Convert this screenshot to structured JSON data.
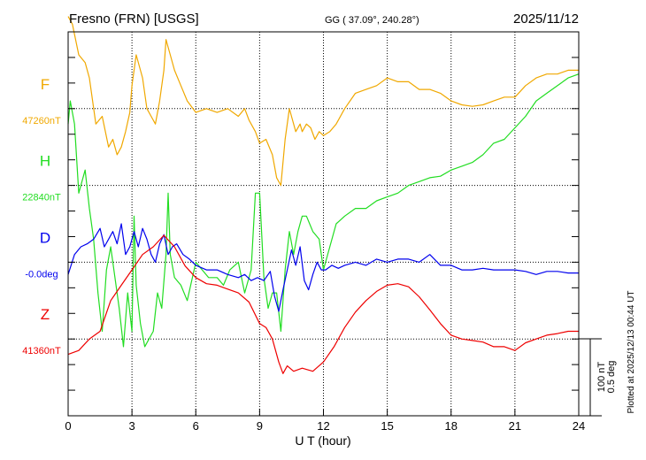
{
  "header": {
    "station": "Fresno (FRN)  [USGS]",
    "coords": "GG ( 37.09°, 240.28°)",
    "date": "2025/11/12"
  },
  "footer": {
    "plotted": "Plotted at 2025/12/13 00:44 UT",
    "scale_nt": "100 nT",
    "scale_deg": "0.5 deg"
  },
  "chart_data": {
    "type": "line",
    "xlabel": "U T (hour)",
    "xlim": [
      0,
      24
    ],
    "xticks": [
      0,
      3,
      6,
      9,
      12,
      15,
      18,
      21,
      24
    ],
    "grid": true,
    "scale_bar": "100 nT / 0.5 deg per 3 grid rows",
    "series": [
      {
        "name": "F",
        "baseline_label": "47260nT",
        "color": "#f0a800",
        "baseline": 47260,
        "x": [
          0,
          0.2,
          0.5,
          0.8,
          1.0,
          1.3,
          1.6,
          1.9,
          2.1,
          2.3,
          2.5,
          2.7,
          2.9,
          3.0,
          3.2,
          3.4,
          3.5,
          3.7,
          3.9,
          4.1,
          4.3,
          4.5,
          4.6,
          4.7,
          4.8,
          5.0,
          5.3,
          5.6,
          6.0,
          6.5,
          7.0,
          7.5,
          8.0,
          8.3,
          8.5,
          8.8,
          9.0,
          9.3,
          9.6,
          9.8,
          10.0,
          10.2,
          10.4,
          10.5,
          10.7,
          10.9,
          11.0,
          11.2,
          11.4,
          11.6,
          11.8,
          12.0,
          12.3,
          12.6,
          13.0,
          13.5,
          14.0,
          14.5,
          15.0,
          15.5,
          16.0,
          16.5,
          17.0,
          17.5,
          18.0,
          18.5,
          19.0,
          19.5,
          20.0,
          20.5,
          21.0,
          21.5,
          22.0,
          22.5,
          23.0,
          23.5,
          24.0
        ],
        "values": [
          47380,
          47370,
          47330,
          47320,
          47300,
          47240,
          47250,
          47210,
          47220,
          47200,
          47210,
          47230,
          47255,
          47290,
          47330,
          47310,
          47300,
          47260,
          47250,
          47240,
          47270,
          47310,
          47350,
          47340,
          47330,
          47310,
          47290,
          47270,
          47255,
          47260,
          47255,
          47260,
          47250,
          47260,
          47245,
          47230,
          47215,
          47220,
          47200,
          47170,
          47160,
          47220,
          47260,
          47250,
          47230,
          47240,
          47230,
          47240,
          47235,
          47220,
          47230,
          47225,
          47230,
          47240,
          47260,
          47280,
          47285,
          47290,
          47300,
          47295,
          47295,
          47285,
          47285,
          47280,
          47270,
          47265,
          47263,
          47265,
          47270,
          47275,
          47275,
          47290,
          47300,
          47305,
          47305,
          47310,
          47310
        ]
      },
      {
        "name": "H",
        "baseline_label": "22840nT",
        "color": "#22dd22",
        "baseline": 22840,
        "x": [
          0,
          0.1,
          0.3,
          0.5,
          0.8,
          1.0,
          1.2,
          1.4,
          1.6,
          1.8,
          2.0,
          2.2,
          2.4,
          2.6,
          2.8,
          3.0,
          3.1,
          3.2,
          3.4,
          3.6,
          3.8,
          4.0,
          4.2,
          4.4,
          4.6,
          4.7,
          4.8,
          5.0,
          5.3,
          5.6,
          6.0,
          6.3,
          6.6,
          7.0,
          7.3,
          7.6,
          8.0,
          8.3,
          8.6,
          8.8,
          9.0,
          9.2,
          9.4,
          9.6,
          9.8,
          10.0,
          10.2,
          10.4,
          10.6,
          10.8,
          11.0,
          11.2,
          11.5,
          11.8,
          12.0,
          12.3,
          12.6,
          13.0,
          13.5,
          14.0,
          14.5,
          15.0,
          15.5,
          16.0,
          16.5,
          17.0,
          17.5,
          18.0,
          18.5,
          19.0,
          19.5,
          20.0,
          20.5,
          21.0,
          21.5,
          22.0,
          22.5,
          23.0,
          23.5,
          24.0
        ],
        "values": [
          22920,
          22950,
          22920,
          22830,
          22860,
          22810,
          22770,
          22700,
          22650,
          22730,
          22760,
          22720,
          22680,
          22630,
          22700,
          22650,
          22800,
          22710,
          22660,
          22630,
          22640,
          22650,
          22700,
          22680,
          22750,
          22830,
          22750,
          22720,
          22710,
          22690,
          22740,
          22730,
          22720,
          22720,
          22710,
          22730,
          22740,
          22700,
          22730,
          22830,
          22830,
          22720,
          22680,
          22700,
          22700,
          22650,
          22730,
          22780,
          22750,
          22780,
          22800,
          22800,
          22780,
          22770,
          22730,
          22760,
          22790,
          22800,
          22810,
          22810,
          22820,
          22825,
          22830,
          22840,
          22845,
          22850,
          22852,
          22860,
          22865,
          22870,
          22880,
          22895,
          22900,
          22915,
          22930,
          22950,
          22960,
          22970,
          22980,
          22985
        ]
      },
      {
        "name": "D",
        "baseline_label": "-0.0deg",
        "color": "#0000ee",
        "baseline": 0,
        "x": [
          0,
          0.3,
          0.6,
          0.9,
          1.2,
          1.5,
          1.7,
          1.9,
          2.1,
          2.3,
          2.5,
          2.7,
          2.9,
          3.1,
          3.3,
          3.5,
          3.7,
          3.9,
          4.1,
          4.3,
          4.5,
          4.7,
          4.9,
          5.1,
          5.4,
          5.7,
          6.0,
          6.5,
          7.0,
          7.5,
          8.0,
          8.3,
          8.6,
          8.9,
          9.2,
          9.5,
          9.7,
          9.9,
          10.1,
          10.3,
          10.5,
          10.7,
          10.9,
          11.1,
          11.3,
          11.5,
          11.7,
          11.9,
          12.1,
          12.4,
          12.7,
          13.0,
          13.5,
          14.0,
          14.5,
          15.0,
          15.5,
          16.0,
          16.5,
          17.0,
          17.5,
          18.0,
          18.5,
          19.0,
          19.5,
          20.0,
          20.5,
          21.0,
          21.5,
          22.0,
          22.5,
          23.0,
          23.5,
          24.0
        ],
        "values": [
          -0.08,
          0.05,
          0.1,
          0.12,
          0.15,
          0.22,
          0.1,
          0.15,
          0.2,
          0.12,
          0.25,
          0.05,
          0.1,
          0.2,
          0.1,
          0.22,
          0.15,
          0.05,
          0.0,
          0.12,
          0.18,
          0.05,
          0.1,
          0.12,
          0.05,
          0.02,
          -0.02,
          -0.05,
          -0.05,
          -0.08,
          -0.1,
          -0.08,
          -0.12,
          -0.1,
          -0.12,
          -0.06,
          -0.22,
          -0.32,
          -0.18,
          -0.05,
          0.08,
          -0.02,
          0.1,
          -0.12,
          -0.18,
          -0.08,
          0.0,
          -0.05,
          -0.05,
          -0.02,
          -0.04,
          -0.02,
          0.0,
          -0.02,
          0.02,
          0.0,
          0.02,
          0.02,
          0.0,
          0.05,
          -0.02,
          -0.02,
          -0.05,
          -0.05,
          -0.04,
          -0.05,
          -0.05,
          -0.05,
          -0.06,
          -0.08,
          -0.06,
          -0.06,
          -0.07,
          -0.07
        ]
      },
      {
        "name": "Z",
        "baseline_label": "41360nT",
        "color": "#ee0000",
        "baseline": 41360,
        "x": [
          0,
          0.5,
          1.0,
          1.5,
          2.0,
          2.5,
          3.0,
          3.5,
          4.0,
          4.5,
          5.0,
          5.5,
          6.0,
          6.5,
          7.0,
          7.5,
          8.0,
          8.5,
          9.0,
          9.3,
          9.6,
          9.9,
          10.1,
          10.3,
          10.6,
          11.0,
          11.5,
          12.0,
          12.5,
          13.0,
          13.5,
          14.0,
          14.5,
          15.0,
          15.5,
          16.0,
          16.5,
          17.0,
          17.5,
          18.0,
          18.5,
          19.0,
          19.5,
          20.0,
          20.5,
          21.0,
          21.5,
          22.0,
          22.5,
          23.0,
          23.5,
          24.0
        ],
        "values": [
          41340,
          41345,
          41360,
          41370,
          41410,
          41430,
          41450,
          41470,
          41480,
          41495,
          41480,
          41455,
          41440,
          41432,
          41430,
          41425,
          41420,
          41408,
          41380,
          41375,
          41360,
          41330,
          41315,
          41325,
          41318,
          41322,
          41318,
          41330,
          41350,
          41375,
          41395,
          41410,
          41422,
          41430,
          41432,
          41428,
          41415,
          41398,
          41380,
          41365,
          41360,
          41358,
          41356,
          41350,
          41350,
          41345,
          41355,
          41360,
          41365,
          41367,
          41370,
          41370
        ]
      }
    ]
  }
}
